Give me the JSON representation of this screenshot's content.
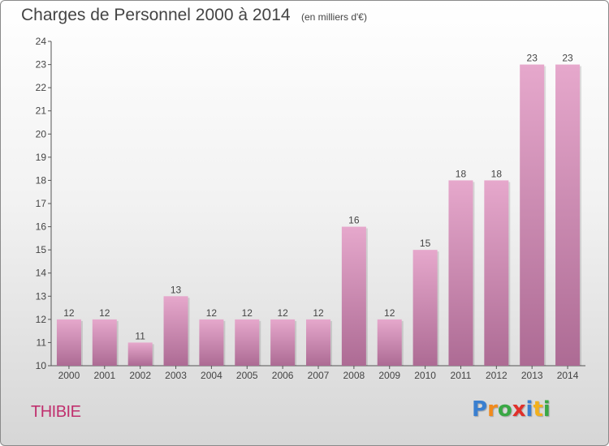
{
  "header": {
    "title": "Charges de Personnel 2000 à 2014",
    "subtitle": "(en milliers d'€)"
  },
  "commune_label": "THIBIE",
  "logo": {
    "letters": [
      "P",
      "r",
      "o",
      "x",
      "i",
      "t",
      "i"
    ],
    "colors": [
      "#3a7fd0",
      "#f28a1c",
      "#3aa845",
      "#e0302a",
      "#3a7fd0",
      "#f2b01c",
      "#3aa845"
    ]
  },
  "colors": {
    "bar_top": "#e6a8cc",
    "bar_bottom": "#ad6b94",
    "axis": "#555555",
    "grid": "#bbbbbb",
    "text": "#444444"
  },
  "chart_data": {
    "type": "bar",
    "categories": [
      "2000",
      "2001",
      "2002",
      "2003",
      "2004",
      "2005",
      "2006",
      "2007",
      "2008",
      "2009",
      "2010",
      "2011",
      "2012",
      "2013",
      "2014"
    ],
    "values": [
      12,
      12,
      11,
      13,
      12,
      12,
      12,
      12,
      16,
      12,
      15,
      18,
      18,
      23,
      23
    ],
    "ylim": [
      10,
      24
    ],
    "yticks": [
      10,
      11,
      12,
      13,
      14,
      15,
      16,
      17,
      18,
      19,
      20,
      21,
      22,
      23,
      24
    ],
    "data_labels": true,
    "grid": false
  }
}
